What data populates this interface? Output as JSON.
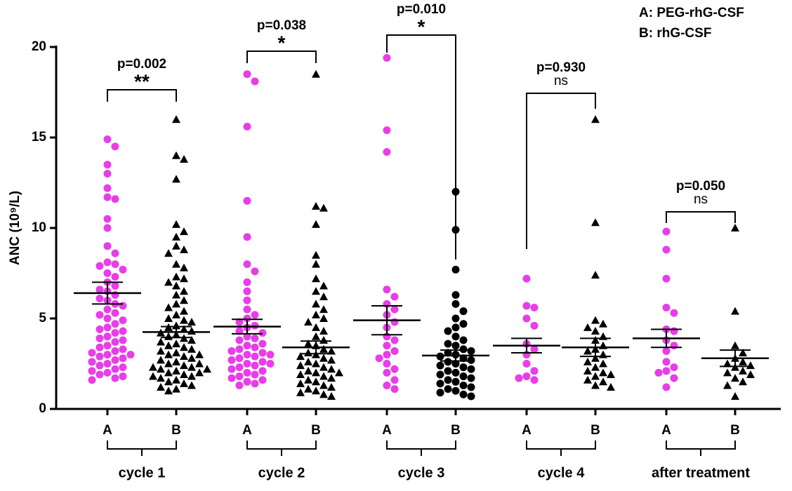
{
  "chart_data": {
    "type": "dot",
    "ylabel": "ANC (10⁹/L)",
    "legend": [
      "A: PEG-rhG-CSF",
      "B: rhG-CSF"
    ],
    "ylim": [
      0,
      20
    ],
    "yticks": [
      0,
      5,
      10,
      15,
      20
    ],
    "groups": [
      {
        "name": "cycle 1",
        "p": "p=0.002",
        "sig": "**",
        "series": [
          {
            "name": "A",
            "color": "#e83de8",
            "marker": "circle",
            "mean": 6.4,
            "sem": 0.6,
            "values": [
              14.9,
              14.5,
              13.5,
              13.0,
              12.2,
              11.7,
              11.6,
              10.5,
              10.0,
              9.0,
              8.6,
              8.1,
              8.0,
              7.9,
              7.7,
              7.5,
              7.3,
              7.0,
              6.8,
              6.6,
              6.5,
              6.3,
              6.1,
              6.0,
              5.8,
              5.7,
              5.5,
              5.3,
              5.2,
              5.0,
              4.9,
              4.7,
              4.5,
              4.4,
              4.3,
              4.2,
              4.0,
              3.9,
              3.8,
              3.7,
              3.5,
              3.4,
              3.3,
              3.2,
              3.1,
              3.0,
              3.0,
              2.9,
              2.8,
              2.7,
              2.6,
              2.5,
              2.4,
              2.3,
              2.2,
              2.1,
              2.0,
              1.9,
              1.8,
              1.7,
              1.6
            ]
          },
          {
            "name": "B",
            "color": "#000000",
            "marker": "triangle",
            "mean": 4.25,
            "sem": 0.3,
            "values": [
              16.0,
              14.0,
              13.8,
              12.7,
              10.2,
              9.8,
              9.5,
              9.0,
              8.8,
              8.6,
              8.0,
              7.8,
              7.3,
              7.2,
              7.0,
              6.8,
              6.5,
              6.3,
              6.0,
              5.8,
              5.6,
              5.4,
              5.2,
              5.0,
              4.9,
              4.8,
              4.6,
              4.5,
              4.4,
              4.3,
              4.2,
              4.1,
              4.0,
              3.9,
              3.8,
              3.7,
              3.6,
              3.5,
              3.4,
              3.3,
              3.2,
              3.1,
              3.0,
              3.0,
              2.9,
              2.8,
              2.7,
              2.6,
              2.5,
              2.5,
              2.4,
              2.3,
              2.3,
              2.2,
              2.2,
              2.1,
              2.0,
              2.0,
              1.9,
              1.8,
              1.8,
              1.7,
              1.6,
              1.5,
              1.4,
              1.3,
              1.2,
              1.1,
              1.0
            ]
          }
        ]
      },
      {
        "name": "cycle 2",
        "p": "p=0.038",
        "sig": "*",
        "series": [
          {
            "name": "A",
            "color": "#e83de8",
            "marker": "circle",
            "mean": 4.55,
            "sem": 0.4,
            "values": [
              18.5,
              18.1,
              15.6,
              11.5,
              9.5,
              8.0,
              7.6,
              7.0,
              6.5,
              6.0,
              5.5,
              5.2,
              5.0,
              4.8,
              4.6,
              4.5,
              4.3,
              4.2,
              4.0,
              3.9,
              3.8,
              3.6,
              3.5,
              3.4,
              3.3,
              3.2,
              3.1,
              3.0,
              3.0,
              2.9,
              2.8,
              2.7,
              2.6,
              2.5,
              2.5,
              2.4,
              2.3,
              2.2,
              2.1,
              2.0,
              1.9,
              1.8,
              1.7,
              1.6,
              1.5,
              1.4,
              1.3
            ]
          },
          {
            "name": "B",
            "color": "#000000",
            "marker": "triangle",
            "mean": 3.4,
            "sem": 0.35,
            "values": [
              18.5,
              11.2,
              11.1,
              10.2,
              8.5,
              8.0,
              7.2,
              6.8,
              6.5,
              6.2,
              5.8,
              5.5,
              5.2,
              5.0,
              4.8,
              4.5,
              4.3,
              4.0,
              3.8,
              3.6,
              3.5,
              3.3,
              3.2,
              3.1,
              3.0,
              2.9,
              2.8,
              2.7,
              2.6,
              2.5,
              2.4,
              2.3,
              2.2,
              2.1,
              2.0,
              2.0,
              1.9,
              1.8,
              1.7,
              1.6,
              1.5,
              1.4,
              1.3,
              1.2,
              1.1,
              1.0,
              0.9,
              0.8,
              0.7
            ]
          }
        ]
      },
      {
        "name": "cycle 3",
        "p": "p=0.010",
        "sig": "*",
        "series": [
          {
            "name": "A",
            "color": "#e83de8",
            "marker": "circle",
            "mean": 4.9,
            "sem": 0.8,
            "values": [
              19.4,
              15.4,
              14.2,
              6.6,
              6.2,
              5.8,
              5.5,
              5.2,
              4.8,
              4.5,
              4.0,
              3.8,
              3.5,
              3.2,
              3.0,
              2.8,
              2.5,
              2.2,
              2.0,
              1.6,
              1.3,
              1.1
            ]
          },
          {
            "name": "B",
            "color": "#000000",
            "marker": "circle",
            "mean": 2.95,
            "sem": 0.3,
            "values": [
              12.0,
              9.9,
              7.7,
              6.3,
              5.8,
              5.4,
              5.0,
              4.7,
              4.5,
              4.3,
              4.0,
              3.8,
              3.6,
              3.5,
              3.3,
              3.2,
              3.1,
              3.0,
              2.9,
              2.8,
              2.7,
              2.6,
              2.5,
              2.4,
              2.3,
              2.2,
              2.1,
              2.0,
              1.9,
              1.8,
              1.7,
              1.6,
              1.5,
              1.4,
              1.3,
              1.2,
              1.1,
              1.0,
              0.9,
              0.8,
              0.7
            ]
          }
        ]
      },
      {
        "name": "cycle 4",
        "p": "p=0.930",
        "sig": "ns",
        "series": [
          {
            "name": "A",
            "color": "#e83de8",
            "marker": "circle",
            "mean": 3.5,
            "sem": 0.4,
            "values": [
              7.2,
              5.7,
              5.6,
              5.0,
              4.6,
              3.6,
              3.3,
              3.0,
              2.5,
              2.1,
              1.8,
              1.7,
              1.6
            ]
          },
          {
            "name": "B",
            "color": "#000000",
            "marker": "triangle",
            "mean": 3.4,
            "sem": 0.5,
            "values": [
              16.0,
              10.3,
              7.4,
              4.9,
              4.7,
              4.5,
              4.3,
              4.0,
              3.8,
              3.5,
              3.3,
              3.2,
              3.0,
              2.8,
              2.6,
              2.5,
              2.3,
              2.1,
              2.0,
              1.9,
              1.8,
              1.6,
              1.5,
              1.3,
              1.2
            ]
          }
        ]
      },
      {
        "name": "after treatment",
        "p": "p=0.050",
        "sig": "ns",
        "series": [
          {
            "name": "A",
            "color": "#e83de8",
            "marker": "circle",
            "mean": 3.9,
            "sem": 0.5,
            "values": [
              9.8,
              8.8,
              7.2,
              5.6,
              5.3,
              4.4,
              4.3,
              3.8,
              3.5,
              3.2,
              2.6,
              2.3,
              2.1,
              2.0,
              1.7,
              1.2
            ]
          },
          {
            "name": "B",
            "color": "#000000",
            "marker": "triangle",
            "mean": 2.8,
            "sem": 0.45,
            "values": [
              10.0,
              5.4,
              3.5,
              3.1,
              2.8,
              2.6,
              2.5,
              2.4,
              2.3,
              2.1,
              2.0,
              1.9,
              1.7,
              1.5,
              1.3,
              0.7
            ]
          }
        ]
      }
    ]
  }
}
